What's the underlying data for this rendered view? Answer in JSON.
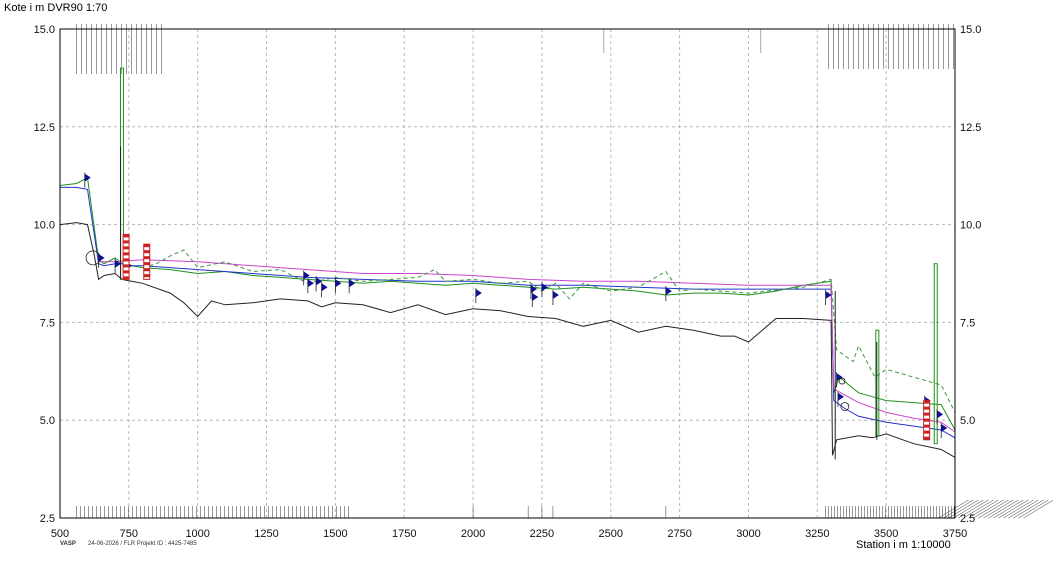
{
  "header": {
    "title": "Kote i m DVR90 1:70"
  },
  "footer": {
    "vasp": "VASP",
    "info": "24-06-2026 / FLR   Projekt ID : 4425-7485",
    "station_label": "Station i m  1:10000"
  },
  "chart_data": {
    "type": "line",
    "title": "",
    "xlabel": "Station i m  1:10000",
    "ylabel": "Kote i m DVR90 1:70",
    "xlim": [
      500,
      3750
    ],
    "ylim": [
      2.5,
      15.0
    ],
    "x_ticks": [
      500,
      750,
      1000,
      1250,
      1500,
      1750,
      2000,
      2250,
      2500,
      2750,
      3000,
      3250,
      3500,
      3750
    ],
    "x_tick_labels": [
      "500",
      "750",
      "1000",
      "1250",
      "1500",
      "1750",
      "2000",
      "2250",
      "2500",
      "2750",
      "3000",
      "3250",
      "3500",
      "3750"
    ],
    "y_ticks": [
      2.5,
      5.0,
      7.5,
      10.0,
      12.5,
      15.0
    ],
    "y_tick_labels_left": [
      "2.5",
      "5.0",
      "7.5",
      "10.0",
      "12.5",
      "15.0"
    ],
    "y_tick_labels_right": [
      "2.5",
      "5.0",
      "7.5",
      "10.0",
      "12.5",
      "15.0"
    ],
    "grid": true,
    "colors": {
      "terrain": "#222222",
      "green": "#1f8f1f",
      "green_dashed": "#3a9a3a",
      "blue": "#2233cc",
      "magenta": "#cc44cc",
      "marker": "#101090",
      "red": "#cc2222",
      "grid": "#b8b8b8"
    },
    "series": [
      {
        "key": "terrain",
        "x": [
          500,
          560,
          600,
          625,
          640,
          660,
          700,
          725,
          760,
          800,
          900,
          950,
          1000,
          1050,
          1100,
          1200,
          1300,
          1400,
          1450,
          1500,
          1600,
          1700,
          1800,
          1900,
          2000,
          2100,
          2200,
          2300,
          2400,
          2500,
          2600,
          2700,
          2800,
          2900,
          2950,
          3000,
          3100,
          3200,
          3300,
          3305,
          3320,
          3400,
          3450,
          3500,
          3600,
          3700,
          3750
        ],
        "y": [
          10.0,
          10.05,
          10.0,
          9.2,
          8.6,
          8.7,
          8.75,
          8.6,
          8.55,
          8.5,
          8.25,
          8.0,
          7.65,
          8.05,
          7.95,
          8.0,
          8.1,
          8.05,
          7.9,
          8.0,
          7.95,
          7.75,
          7.95,
          7.7,
          7.85,
          7.8,
          7.65,
          7.6,
          7.4,
          7.55,
          7.25,
          7.4,
          7.3,
          7.15,
          7.15,
          7.0,
          7.6,
          7.6,
          7.55,
          4.1,
          4.5,
          4.6,
          4.55,
          4.65,
          4.4,
          4.25,
          4.05
        ]
      },
      {
        "key": "green",
        "x": [
          500,
          560,
          600,
          640,
          660,
          700,
          725,
          760,
          800,
          900,
          1000,
          1100,
          1200,
          1300,
          1400,
          1500,
          1600,
          1700,
          1800,
          1900,
          2000,
          2100,
          2200,
          2300,
          2400,
          2500,
          2600,
          2700,
          2800,
          2900,
          3000,
          3100,
          3200,
          3300,
          3310,
          3330,
          3400,
          3450,
          3500,
          3600,
          3700,
          3750
        ],
        "y": [
          11.0,
          11.05,
          11.2,
          9.1,
          9.0,
          9.15,
          9.0,
          8.95,
          8.9,
          8.85,
          8.75,
          8.8,
          8.7,
          8.65,
          8.6,
          8.55,
          8.5,
          8.55,
          8.5,
          8.45,
          8.5,
          8.45,
          8.4,
          8.35,
          8.4,
          8.35,
          8.3,
          8.2,
          8.25,
          8.25,
          8.2,
          8.3,
          8.45,
          8.55,
          5.7,
          6.1,
          5.7,
          5.6,
          5.5,
          5.45,
          5.4,
          4.75
        ]
      },
      {
        "key": "blue",
        "x": [
          500,
          560,
          600,
          640,
          660,
          700,
          725,
          760,
          800,
          900,
          1000,
          1200,
          1400,
          1600,
          1800,
          2000,
          2200,
          2400,
          2600,
          2800,
          3000,
          3200,
          3300,
          3310,
          3350,
          3400,
          3500,
          3600,
          3700,
          3750
        ],
        "y": [
          10.95,
          10.95,
          10.9,
          9.0,
          8.95,
          9.0,
          9.0,
          8.95,
          8.95,
          8.9,
          8.85,
          8.75,
          8.65,
          8.6,
          8.55,
          8.55,
          8.45,
          8.45,
          8.4,
          8.35,
          8.35,
          8.35,
          8.35,
          5.5,
          5.3,
          5.1,
          4.95,
          4.85,
          4.75,
          4.55
        ]
      },
      {
        "key": "magenta",
        "x": [
          640,
          700,
          800,
          1000,
          1200,
          1400,
          1600,
          1800,
          2000,
          2200,
          2400,
          2600,
          2800,
          3000,
          3200,
          3300,
          3310,
          3400,
          3500,
          3600,
          3700,
          3750
        ],
        "y": [
          9.05,
          9.05,
          9.1,
          9.05,
          8.95,
          8.85,
          8.75,
          8.75,
          8.7,
          8.6,
          8.55,
          8.55,
          8.5,
          8.45,
          8.45,
          8.45,
          5.8,
          5.45,
          5.2,
          5.05,
          4.95,
          4.7
        ]
      },
      {
        "key": "green_dashed",
        "x": [
          800,
          850,
          900,
          950,
          1000,
          1100,
          1200,
          1300,
          1400,
          1500,
          1600,
          1700,
          1800,
          1860,
          1900,
          2000,
          2100,
          2200,
          2250,
          2300,
          2350,
          2400,
          2500,
          2600,
          2700,
          2750,
          2800,
          2900,
          3000,
          3200,
          3300,
          3320,
          3380,
          3400,
          3460,
          3500,
          3600,
          3700,
          3750
        ],
        "y": [
          8.9,
          9.0,
          9.2,
          9.35,
          8.9,
          9.05,
          8.8,
          8.85,
          8.5,
          8.65,
          8.55,
          8.6,
          8.65,
          8.85,
          8.55,
          8.6,
          8.5,
          8.55,
          8.3,
          8.5,
          8.1,
          8.5,
          8.3,
          8.4,
          8.8,
          8.3,
          8.35,
          8.3,
          8.25,
          8.4,
          8.6,
          6.8,
          6.5,
          6.9,
          6.1,
          6.3,
          6.1,
          5.9,
          5.2
        ]
      }
    ],
    "spikes_green": [
      {
        "x": 725,
        "y0": 8.6,
        "y1": 14.0
      },
      {
        "x": 3468,
        "y0": 4.6,
        "y1": 7.3
      },
      {
        "x": 3680,
        "y0": 4.4,
        "y1": 9.0
      }
    ],
    "spikes_black": [
      {
        "x": 720,
        "y0": 8.6,
        "y1": 12.0
      },
      {
        "x": 3315,
        "y0": 4.0,
        "y1": 8.3
      },
      {
        "x": 3466,
        "y0": 4.5,
        "y1": 7.0
      }
    ],
    "markers": [
      {
        "x": 590,
        "y": 11.2
      },
      {
        "x": 640,
        "y": 9.15
      },
      {
        "x": 700,
        "y": 9.0
      },
      {
        "x": 740,
        "y": 8.95
      },
      {
        "x": 1385,
        "y": 8.7
      },
      {
        "x": 1400,
        "y": 8.5
      },
      {
        "x": 1430,
        "y": 8.55
      },
      {
        "x": 1450,
        "y": 8.4
      },
      {
        "x": 1500,
        "y": 8.5
      },
      {
        "x": 1550,
        "y": 8.5
      },
      {
        "x": 2010,
        "y": 8.25
      },
      {
        "x": 2210,
        "y": 8.35
      },
      {
        "x": 2215,
        "y": 8.15
      },
      {
        "x": 2250,
        "y": 8.4
      },
      {
        "x": 2290,
        "y": 8.2
      },
      {
        "x": 2700,
        "y": 8.3
      },
      {
        "x": 3280,
        "y": 8.2
      },
      {
        "x": 3320,
        "y": 6.1
      },
      {
        "x": 3325,
        "y": 5.6
      },
      {
        "x": 3640,
        "y": 5.5
      },
      {
        "x": 3685,
        "y": 5.15
      },
      {
        "x": 3700,
        "y": 4.8
      }
    ],
    "red_markers": [
      {
        "x": 740,
        "y0": 8.6,
        "y1": 9.75
      },
      {
        "x": 815,
        "y0": 8.6,
        "y1": 9.5
      },
      {
        "x": 3647,
        "y0": 4.5,
        "y1": 5.5
      }
    ]
  }
}
